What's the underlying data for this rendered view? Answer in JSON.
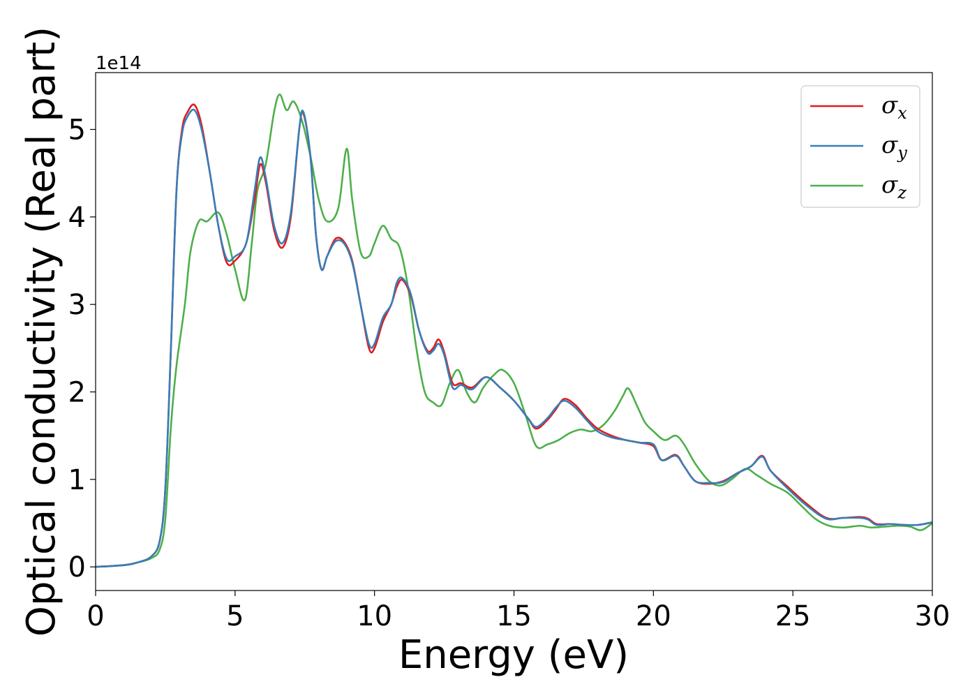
{
  "chart_data": {
    "type": "line",
    "xlabel": "Energy (eV)",
    "ylabel": "Optical conductivity (Real part)",
    "y_offset_label": "1e14",
    "xlim": [
      0,
      30
    ],
    "ylim": [
      -0.27,
      5.65
    ],
    "x_ticks": [
      0,
      5,
      10,
      15,
      20,
      25,
      30
    ],
    "y_ticks": [
      0,
      1,
      2,
      3,
      4,
      5
    ],
    "x_tick_labels": [
      "0",
      "5",
      "10",
      "15",
      "20",
      "25",
      "30"
    ],
    "y_tick_labels": [
      "0",
      "1",
      "2",
      "3",
      "4",
      "5"
    ],
    "grid": false,
    "legend_position": "top-right",
    "series": [
      {
        "name": "σ",
        "subscript": "x",
        "color": "#e41a1c",
        "points": [
          [
            0,
            0
          ],
          [
            1,
            0.02
          ],
          [
            1.5,
            0.05
          ],
          [
            2,
            0.12
          ],
          [
            2.3,
            0.3
          ],
          [
            2.5,
            0.9
          ],
          [
            2.7,
            2.5
          ],
          [
            2.9,
            4.3
          ],
          [
            3.1,
            5.0
          ],
          [
            3.3,
            5.2
          ],
          [
            3.55,
            5.28
          ],
          [
            3.8,
            5.05
          ],
          [
            4.1,
            4.5
          ],
          [
            4.4,
            3.9
          ],
          [
            4.7,
            3.48
          ],
          [
            5.0,
            3.5
          ],
          [
            5.4,
            3.7
          ],
          [
            5.7,
            4.2
          ],
          [
            5.9,
            4.6
          ],
          [
            6.1,
            4.4
          ],
          [
            6.4,
            3.85
          ],
          [
            6.7,
            3.65
          ],
          [
            7.0,
            4.0
          ],
          [
            7.3,
            5.0
          ],
          [
            7.45,
            5.18
          ],
          [
            7.7,
            4.7
          ],
          [
            7.9,
            3.8
          ],
          [
            8.1,
            3.4
          ],
          [
            8.3,
            3.55
          ],
          [
            8.6,
            3.75
          ],
          [
            8.9,
            3.72
          ],
          [
            9.2,
            3.5
          ],
          [
            9.5,
            3.0
          ],
          [
            9.8,
            2.5
          ],
          [
            10.0,
            2.5
          ],
          [
            10.3,
            2.8
          ],
          [
            10.6,
            3.0
          ],
          [
            10.8,
            3.2
          ],
          [
            11.0,
            3.28
          ],
          [
            11.3,
            3.1
          ],
          [
            11.6,
            2.7
          ],
          [
            11.9,
            2.47
          ],
          [
            12.1,
            2.5
          ],
          [
            12.3,
            2.6
          ],
          [
            12.5,
            2.45
          ],
          [
            12.8,
            2.1
          ],
          [
            13.1,
            2.1
          ],
          [
            13.5,
            2.05
          ],
          [
            14.0,
            2.17
          ],
          [
            14.5,
            2.05
          ],
          [
            15.0,
            1.9
          ],
          [
            15.5,
            1.7
          ],
          [
            15.8,
            1.58
          ],
          [
            16.2,
            1.68
          ],
          [
            16.5,
            1.8
          ],
          [
            16.8,
            1.92
          ],
          [
            17.2,
            1.85
          ],
          [
            17.6,
            1.7
          ],
          [
            18.0,
            1.58
          ],
          [
            18.5,
            1.5
          ],
          [
            19.0,
            1.45
          ],
          [
            19.5,
            1.42
          ],
          [
            20.0,
            1.38
          ],
          [
            20.3,
            1.22
          ],
          [
            20.8,
            1.28
          ],
          [
            21.1,
            1.15
          ],
          [
            21.5,
            0.98
          ],
          [
            22.0,
            0.95
          ],
          [
            22.5,
            0.98
          ],
          [
            23.0,
            1.07
          ],
          [
            23.5,
            1.15
          ],
          [
            23.9,
            1.27
          ],
          [
            24.2,
            1.1
          ],
          [
            24.8,
            0.92
          ],
          [
            25.5,
            0.72
          ],
          [
            26.2,
            0.56
          ],
          [
            26.8,
            0.56
          ],
          [
            27.4,
            0.57
          ],
          [
            27.7,
            0.55
          ],
          [
            28.0,
            0.49
          ],
          [
            28.5,
            0.49
          ],
          [
            29.0,
            0.48
          ],
          [
            29.5,
            0.48
          ],
          [
            30.0,
            0.51
          ]
        ]
      },
      {
        "name": "σ",
        "subscript": "y",
        "color": "#377eb8",
        "points": [
          [
            0,
            0
          ],
          [
            1,
            0.02
          ],
          [
            1.5,
            0.05
          ],
          [
            2,
            0.12
          ],
          [
            2.3,
            0.3
          ],
          [
            2.5,
            0.9
          ],
          [
            2.7,
            2.5
          ],
          [
            2.9,
            4.3
          ],
          [
            3.1,
            4.95
          ],
          [
            3.3,
            5.15
          ],
          [
            3.55,
            5.22
          ],
          [
            3.8,
            5.0
          ],
          [
            4.1,
            4.5
          ],
          [
            4.4,
            3.9
          ],
          [
            4.7,
            3.52
          ],
          [
            5.0,
            3.55
          ],
          [
            5.4,
            3.7
          ],
          [
            5.7,
            4.3
          ],
          [
            5.9,
            4.68
          ],
          [
            6.1,
            4.45
          ],
          [
            6.4,
            3.9
          ],
          [
            6.7,
            3.7
          ],
          [
            7.0,
            4.05
          ],
          [
            7.3,
            5.0
          ],
          [
            7.45,
            5.2
          ],
          [
            7.7,
            4.7
          ],
          [
            7.9,
            3.8
          ],
          [
            8.1,
            3.4
          ],
          [
            8.3,
            3.55
          ],
          [
            8.6,
            3.72
          ],
          [
            8.9,
            3.7
          ],
          [
            9.2,
            3.48
          ],
          [
            9.5,
            3.0
          ],
          [
            9.8,
            2.55
          ],
          [
            10.0,
            2.55
          ],
          [
            10.3,
            2.85
          ],
          [
            10.6,
            3.0
          ],
          [
            10.8,
            3.25
          ],
          [
            11.0,
            3.3
          ],
          [
            11.3,
            3.12
          ],
          [
            11.6,
            2.7
          ],
          [
            11.9,
            2.45
          ],
          [
            12.1,
            2.47
          ],
          [
            12.3,
            2.55
          ],
          [
            12.5,
            2.42
          ],
          [
            12.8,
            2.05
          ],
          [
            13.1,
            2.08
          ],
          [
            13.5,
            2.03
          ],
          [
            14.0,
            2.17
          ],
          [
            14.5,
            2.05
          ],
          [
            15.0,
            1.9
          ],
          [
            15.5,
            1.7
          ],
          [
            15.8,
            1.6
          ],
          [
            16.2,
            1.7
          ],
          [
            16.5,
            1.82
          ],
          [
            16.8,
            1.9
          ],
          [
            17.2,
            1.82
          ],
          [
            17.6,
            1.68
          ],
          [
            18.0,
            1.55
          ],
          [
            18.5,
            1.48
          ],
          [
            19.0,
            1.45
          ],
          [
            19.5,
            1.42
          ],
          [
            20.0,
            1.4
          ],
          [
            20.3,
            1.22
          ],
          [
            20.8,
            1.27
          ],
          [
            21.1,
            1.15
          ],
          [
            21.5,
            0.98
          ],
          [
            22.0,
            0.96
          ],
          [
            22.5,
            0.97
          ],
          [
            23.0,
            1.07
          ],
          [
            23.5,
            1.15
          ],
          [
            23.9,
            1.26
          ],
          [
            24.2,
            1.1
          ],
          [
            24.8,
            0.9
          ],
          [
            25.5,
            0.7
          ],
          [
            26.2,
            0.55
          ],
          [
            26.8,
            0.56
          ],
          [
            27.4,
            0.56
          ],
          [
            27.7,
            0.54
          ],
          [
            28.0,
            0.48
          ],
          [
            28.5,
            0.49
          ],
          [
            29.0,
            0.48
          ],
          [
            29.5,
            0.48
          ],
          [
            30.0,
            0.51
          ]
        ]
      },
      {
        "name": "σ",
        "subscript": "z",
        "color": "#4daf4a",
        "points": [
          [
            0,
            0
          ],
          [
            1,
            0.02
          ],
          [
            1.5,
            0.05
          ],
          [
            2,
            0.1
          ],
          [
            2.3,
            0.2
          ],
          [
            2.5,
            0.55
          ],
          [
            2.7,
            1.6
          ],
          [
            2.9,
            2.3
          ],
          [
            3.2,
            3.0
          ],
          [
            3.4,
            3.6
          ],
          [
            3.7,
            3.95
          ],
          [
            4.0,
            3.95
          ],
          [
            4.4,
            4.05
          ],
          [
            4.7,
            3.8
          ],
          [
            5.0,
            3.4
          ],
          [
            5.35,
            3.05
          ],
          [
            5.6,
            3.7
          ],
          [
            5.8,
            4.3
          ],
          [
            6.1,
            4.6
          ],
          [
            6.4,
            5.2
          ],
          [
            6.6,
            5.4
          ],
          [
            6.85,
            5.22
          ],
          [
            7.1,
            5.32
          ],
          [
            7.4,
            5.1
          ],
          [
            7.7,
            4.7
          ],
          [
            8.0,
            4.2
          ],
          [
            8.3,
            3.95
          ],
          [
            8.7,
            4.1
          ],
          [
            9.0,
            4.78
          ],
          [
            9.2,
            4.2
          ],
          [
            9.5,
            3.6
          ],
          [
            9.8,
            3.55
          ],
          [
            10.0,
            3.7
          ],
          [
            10.3,
            3.9
          ],
          [
            10.6,
            3.75
          ],
          [
            10.9,
            3.65
          ],
          [
            11.2,
            3.2
          ],
          [
            11.5,
            2.5
          ],
          [
            11.8,
            2.0
          ],
          [
            12.1,
            1.88
          ],
          [
            12.4,
            1.85
          ],
          [
            12.7,
            2.1
          ],
          [
            13.0,
            2.25
          ],
          [
            13.3,
            2.0
          ],
          [
            13.6,
            1.88
          ],
          [
            13.9,
            2.05
          ],
          [
            14.3,
            2.2
          ],
          [
            14.6,
            2.25
          ],
          [
            15.0,
            2.1
          ],
          [
            15.4,
            1.75
          ],
          [
            15.8,
            1.38
          ],
          [
            16.2,
            1.4
          ],
          [
            16.6,
            1.45
          ],
          [
            17.0,
            1.53
          ],
          [
            17.4,
            1.57
          ],
          [
            17.8,
            1.55
          ],
          [
            18.2,
            1.62
          ],
          [
            18.6,
            1.78
          ],
          [
            18.9,
            1.95
          ],
          [
            19.1,
            2.04
          ],
          [
            19.4,
            1.85
          ],
          [
            19.7,
            1.65
          ],
          [
            20.0,
            1.55
          ],
          [
            20.4,
            1.45
          ],
          [
            20.8,
            1.5
          ],
          [
            21.1,
            1.4
          ],
          [
            21.5,
            1.18
          ],
          [
            22.0,
            0.98
          ],
          [
            22.4,
            0.93
          ],
          [
            22.8,
            1.0
          ],
          [
            23.3,
            1.12
          ],
          [
            23.7,
            1.05
          ],
          [
            24.2,
            0.95
          ],
          [
            24.8,
            0.85
          ],
          [
            25.3,
            0.7
          ],
          [
            25.8,
            0.55
          ],
          [
            26.3,
            0.47
          ],
          [
            26.8,
            0.45
          ],
          [
            27.4,
            0.47
          ],
          [
            27.8,
            0.45
          ],
          [
            28.3,
            0.46
          ],
          [
            28.8,
            0.47
          ],
          [
            29.2,
            0.46
          ],
          [
            29.6,
            0.42
          ],
          [
            30.0,
            0.5
          ]
        ]
      }
    ]
  }
}
